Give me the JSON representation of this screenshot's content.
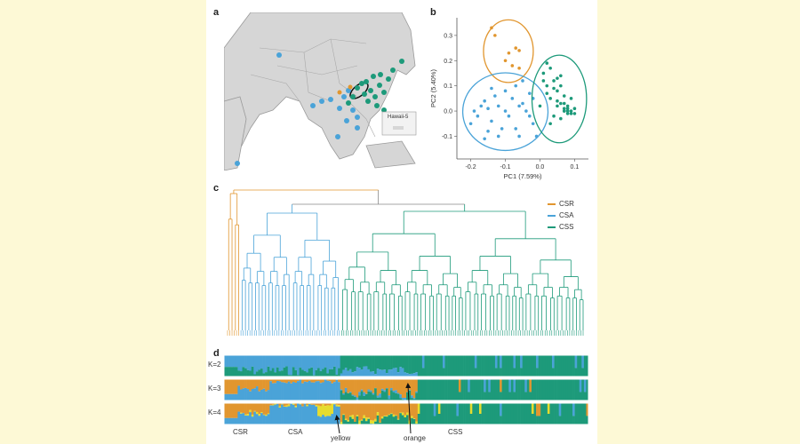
{
  "figure": {
    "panels": {
      "a": "a",
      "b": "b",
      "c": "c",
      "d": "d"
    },
    "map": {
      "inset_label": "Hawaii-5"
    },
    "pca": {
      "xlabel": "PC1 (7.59%)",
      "ylabel": "PC2 (5.40%)",
      "x_ticks": [
        "-0.2",
        "-0.1",
        "0.0",
        "0.1"
      ],
      "y_ticks": [
        "0.3",
        "0.2",
        "0.1",
        "0.0",
        "-0.1"
      ]
    },
    "legend": [
      {
        "label": "CSR",
        "color": "#e1962f"
      },
      {
        "label": "CSA",
        "color": "#4aa3d8"
      },
      {
        "label": "CSS",
        "color": "#1d9a7a"
      }
    ],
    "structure": {
      "rows": [
        "K=2",
        "K=3",
        "K=4"
      ],
      "groups": [
        "CSR",
        "CSA",
        "CSS"
      ],
      "annotations": [
        "yellow",
        "orange"
      ]
    },
    "colors": {
      "csr": "#e1962f",
      "csa": "#4aa3d8",
      "css": "#1d9a7a",
      "yellow": "#e6dc2e"
    }
  },
  "chart_data": {
    "type": "scatter",
    "title": "",
    "xlabel": "PC1 (7.59%)",
    "ylabel": "PC2 (5.40%)",
    "xlim": [
      -0.24,
      0.14
    ],
    "ylim": [
      -0.19,
      0.37
    ],
    "series": [
      {
        "name": "CSR",
        "color": "#e1962f",
        "x": [
          -0.14,
          -0.13,
          -0.1,
          -0.08,
          -0.07,
          -0.06,
          -0.06,
          -0.09
        ],
        "y": [
          0.33,
          0.3,
          0.2,
          0.18,
          0.25,
          0.24,
          0.17,
          0.23
        ]
      },
      {
        "name": "CSA",
        "color": "#4aa3d8",
        "x": [
          -0.2,
          -0.19,
          -0.18,
          -0.17,
          -0.16,
          -0.15,
          -0.15,
          -0.14,
          -0.13,
          -0.12,
          -0.11,
          -0.1,
          -0.09,
          -0.08,
          -0.07,
          -0.06,
          -0.05,
          -0.04,
          -0.03,
          -0.02,
          -0.01,
          -0.12,
          -0.07,
          -0.05,
          -0.1,
          -0.16,
          -0.14,
          -0.06,
          -0.03,
          -0.02
        ],
        "y": [
          -0.05,
          0.0,
          -0.02,
          0.02,
          0.04,
          -0.08,
          0.01,
          -0.04,
          0.06,
          0.02,
          -0.07,
          0.08,
          -0.02,
          0.05,
          0.1,
          -0.1,
          0.03,
          0.0,
          0.07,
          -0.05,
          -0.1,
          -0.1,
          -0.07,
          0.12,
          0.0,
          -0.11,
          0.09,
          0.02,
          -0.02,
          0.05
        ]
      },
      {
        "name": "CSS",
        "color": "#1d9a7a",
        "x": [
          0.0,
          0.01,
          0.02,
          0.02,
          0.03,
          0.04,
          0.05,
          0.06,
          0.07,
          0.07,
          0.08,
          0.08,
          0.09,
          0.06,
          0.05,
          0.04,
          0.03,
          0.02,
          0.01,
          0.06,
          0.07,
          0.08,
          0.09,
          0.1,
          0.05,
          0.04,
          0.06,
          0.07,
          0.08,
          0.03,
          0.05,
          0.09,
          0.1,
          0.08,
          0.07
        ],
        "y": [
          0.02,
          0.15,
          0.19,
          0.1,
          0.05,
          0.12,
          0.08,
          0.03,
          0.0,
          0.06,
          0.0,
          0.0,
          -0.01,
          0.14,
          0.02,
          -0.02,
          -0.05,
          0.07,
          0.12,
          0.1,
          0.01,
          0.01,
          0.0,
          0.01,
          0.04,
          0.09,
          -0.03,
          0.0,
          0.02,
          0.17,
          0.13,
          0.05,
          -0.01,
          -0.01,
          0.03
        ]
      }
    ]
  }
}
